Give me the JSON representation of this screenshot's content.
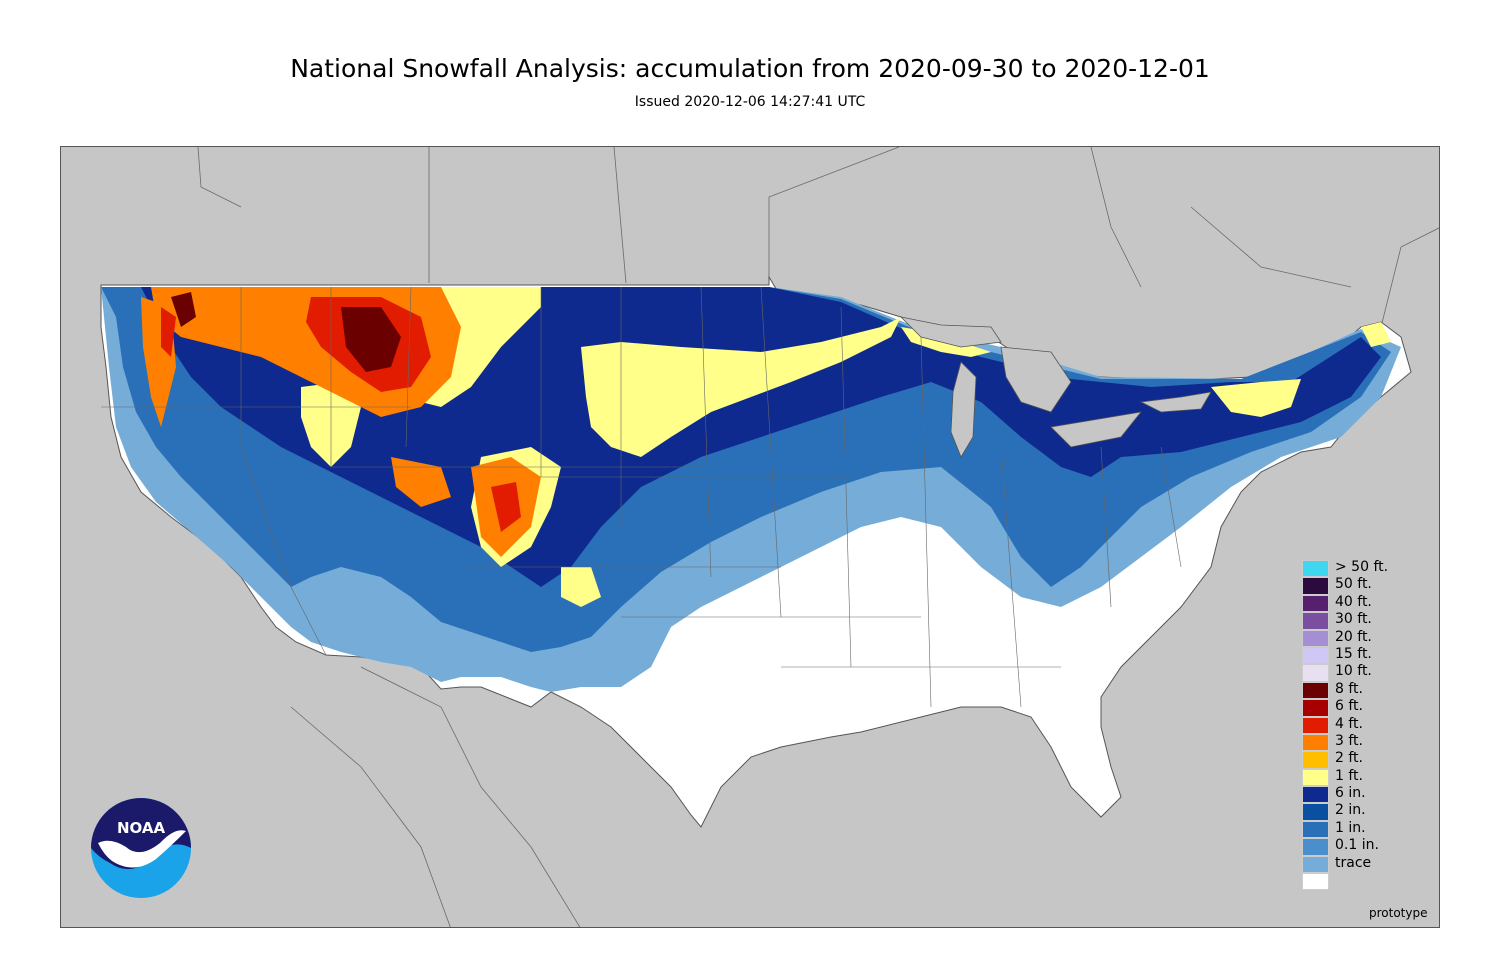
{
  "title": "National Snowfall Analysis: accumulation from 2020-09-30 to 2020-12-01",
  "subtitle": "Issued 2020-12-06 14:27:41 UTC",
  "footer_note": "prototype",
  "logo_text": "NOAA",
  "colors": {
    "land_background": "#c6c6c6",
    "water_background": "#c6c6c6",
    "border_lines": "#555555"
  },
  "legend": [
    {
      "label": "> 50 ft.",
      "color": "#3fd6f0"
    },
    {
      "label": "50 ft.",
      "color": "#2b0a3d"
    },
    {
      "label": "40 ft.",
      "color": "#56206e"
    },
    {
      "label": "30 ft.",
      "color": "#7b4f9f"
    },
    {
      "label": "20 ft.",
      "color": "#a58fd4"
    },
    {
      "label": "15 ft.",
      "color": "#cfc8f5"
    },
    {
      "label": "10 ft.",
      "color": "#e8e0f0"
    },
    {
      "label": "8 ft.",
      "color": "#6b0000"
    },
    {
      "label": "6 ft.",
      "color": "#a70000"
    },
    {
      "label": "4 ft.",
      "color": "#e11c00"
    },
    {
      "label": "3 ft.",
      "color": "#ff8000"
    },
    {
      "label": "2 ft.",
      "color": "#ffbf00"
    },
    {
      "label": "1 ft.",
      "color": "#ffff8a"
    },
    {
      "label": "6 in.",
      "color": "#0e2a8f"
    },
    {
      "label": "2 in.",
      "color": "#0a4fa0"
    },
    {
      "label": "1 in.",
      "color": "#2a70b8"
    },
    {
      "label": "0.1 in.",
      "color": "#4a8fcc"
    },
    {
      "label": "trace",
      "color": "#76acd8"
    },
    {
      "label": "",
      "color": "#ffffff"
    }
  ]
}
